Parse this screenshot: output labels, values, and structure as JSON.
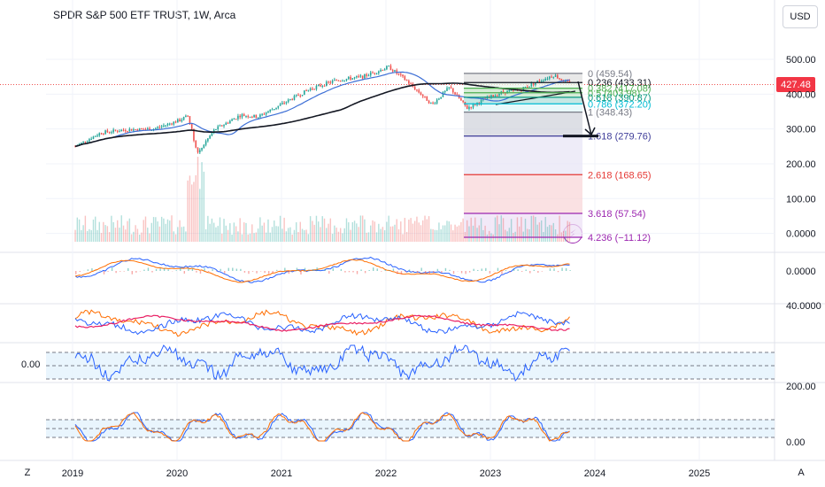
{
  "header": {
    "title": "SPDR S&P 500 ETF TRUST, 1W, Arca",
    "currency_button": "USD",
    "current_price": "427.48",
    "corner_left": "Z",
    "corner_right": "A"
  },
  "colors": {
    "background": "#ffffff",
    "grid": "#f0f3fa",
    "up": "#26a69a",
    "down": "#ef5350",
    "price_tag": "#f23645",
    "ma_blue": "#3d6fd6",
    "ma_black": "#131722",
    "macd_blue": "#2962ff",
    "macd_orange": "#ff6d00",
    "rsi_blue": "#2962ff",
    "stoch_band": "#e3f2fd"
  },
  "chart_data": {
    "type": "candlestick",
    "x_axis": {
      "ticks": [
        "2019",
        "2020",
        "2021",
        "2022",
        "2023",
        "2024",
        "2025"
      ]
    },
    "panes": [
      {
        "name": "price",
        "y_ticks": [
          "500.00",
          "400.00",
          "300.00",
          "200.00",
          "100.00",
          "0.0000"
        ],
        "ylim": [
          -20,
          520
        ],
        "last_price": 427.48,
        "price_path": [
          [
            "2019-01",
            250
          ],
          [
            "2019-04",
            290
          ],
          [
            "2019-07",
            298
          ],
          [
            "2019-10",
            300
          ],
          [
            "2020-01",
            325
          ],
          [
            "2020-02",
            338
          ],
          [
            "2020-03",
            230
          ],
          [
            "2020-05",
            298
          ],
          [
            "2020-08",
            340
          ],
          [
            "2020-10",
            335
          ],
          [
            "2021-01",
            375
          ],
          [
            "2021-04",
            415
          ],
          [
            "2021-07",
            440
          ],
          [
            "2021-10",
            450
          ],
          [
            "2022-01",
            478
          ],
          [
            "2022-03",
            440
          ],
          [
            "2022-06",
            370
          ],
          [
            "2022-08",
            420
          ],
          [
            "2022-10",
            360
          ],
          [
            "2022-12",
            385
          ],
          [
            "2023-02",
            405
          ],
          [
            "2023-04",
            412
          ],
          [
            "2023-06",
            435
          ],
          [
            "2023-08",
            455
          ],
          [
            "2023-09",
            440
          ],
          [
            "2023-10",
            427
          ]
        ],
        "fibonacci": [
          {
            "level": "0",
            "label": "0 (459.54)",
            "price": 459.54,
            "color": "#787b86"
          },
          {
            "level": "0.236",
            "label": "0.236 (433.31)",
            "price": 433.31,
            "color": "#131722"
          },
          {
            "level": "0.382",
            "label": "0.382 (417.08)",
            "price": 417.08,
            "color": "#4caf50"
          },
          {
            "level": "0.5",
            "label": "0.5 (403.98)",
            "price": 403.98,
            "color": "#4caf50"
          },
          {
            "level": "0.618",
            "label": "0.618 (390.87)",
            "price": 390.87,
            "color": "#089981"
          },
          {
            "level": "0.786",
            "label": "0.786 (372.20)",
            "price": 372.2,
            "color": "#00bcd4"
          },
          {
            "level": "1",
            "label": "1 (348.43)",
            "price": 348.43,
            "color": "#787b86"
          },
          {
            "level": "1.618",
            "label": "1.618 (279.76)",
            "price": 279.76,
            "color": "#3f3d99"
          },
          {
            "level": "2.618",
            "label": "2.618 (168.65)",
            "price": 168.65,
            "color": "#e53935"
          },
          {
            "level": "3.618",
            "label": "3.618 (57.54)",
            "price": 57.54,
            "color": "#9c27b0"
          },
          {
            "level": "4.236",
            "label": "4.236 (−11.12)",
            "price": -11.12,
            "color": "#9c27b0"
          }
        ]
      },
      {
        "name": "macd",
        "y_ticks": [
          "0.0000"
        ]
      },
      {
        "name": "dmi",
        "y_ticks": [
          "40.0000"
        ]
      },
      {
        "name": "rsi",
        "left_label": "0.00",
        "y_ticks": [
          "200.00"
        ]
      },
      {
        "name": "stochastic",
        "y_ticks": [
          "0.00"
        ]
      }
    ],
    "grid": true,
    "legend": "none"
  }
}
